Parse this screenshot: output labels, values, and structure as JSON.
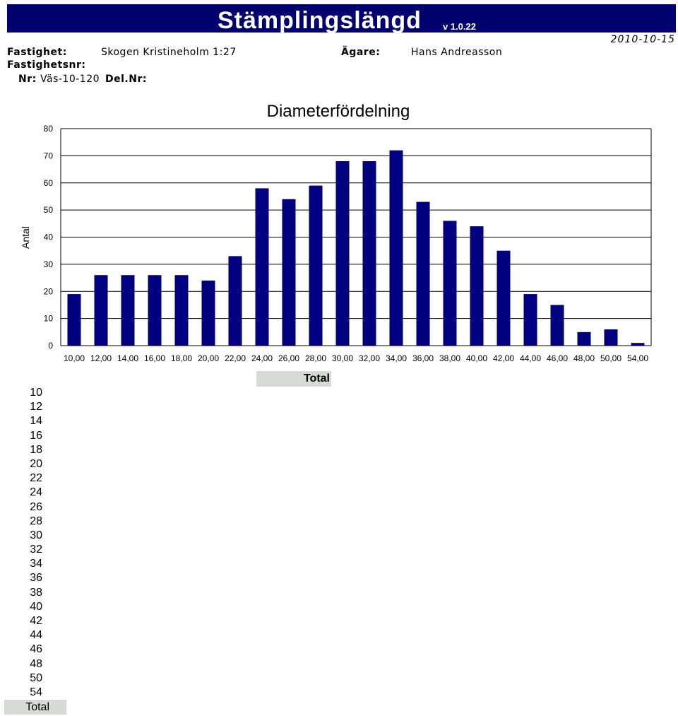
{
  "header": {
    "app_title": "Stämplingslängd",
    "version": "v 1.0.22",
    "date": "2010-10-15",
    "fastighet_label": "Fastighet:",
    "fastighet_value": "Skogen Kristineholm 1:27",
    "agare_label": "Ägare:",
    "agare_value": "Hans Andreasson",
    "fastighetsnr_label": "Fastighetsnr:",
    "nr_label": "Nr:",
    "nr_value": "Väs-10-120",
    "delnr_label": "Del.Nr:"
  },
  "colors": {
    "title_bar": "#00006e",
    "bar": "#000080",
    "total_bg": "#d7dad7"
  },
  "chart_data": {
    "type": "bar",
    "title": "Diameterfördelning",
    "ylabel": "Antal",
    "xlabel": "",
    "categories": [
      "10,00",
      "12,00",
      "14,00",
      "16,00",
      "18,00",
      "20,00",
      "22,00",
      "24,00",
      "26,00",
      "28,00",
      "30,00",
      "32,00",
      "34,00",
      "36,00",
      "38,00",
      "40,00",
      "42,00",
      "44,00",
      "46,00",
      "48,00",
      "50,00",
      "54,00"
    ],
    "values": [
      19,
      26,
      26,
      26,
      26,
      24,
      33,
      58,
      54,
      59,
      68,
      68,
      72,
      53,
      46,
      44,
      35,
      19,
      15,
      5,
      6,
      1
    ],
    "ylim": [
      0,
      80
    ],
    "yticks": [
      "0",
      "10",
      "20",
      "30",
      "40",
      "50",
      "60",
      "70",
      "80"
    ],
    "grid": true
  },
  "table": {
    "column_header": "Total",
    "row_labels": [
      "10",
      "12",
      "14",
      "16",
      "18",
      "20",
      "22",
      "24",
      "26",
      "28",
      "30",
      "32",
      "34",
      "36",
      "38",
      "40",
      "42",
      "44",
      "46",
      "48",
      "50",
      "54"
    ],
    "total_label": "Total"
  }
}
